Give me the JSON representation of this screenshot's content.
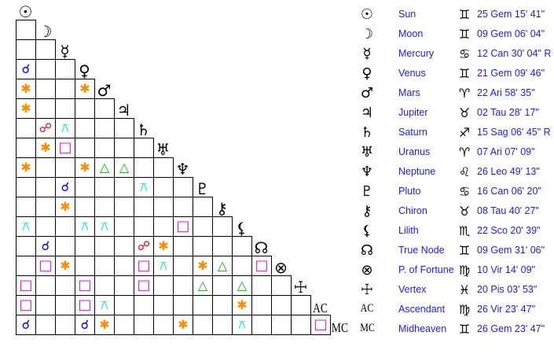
{
  "planets": [
    {
      "name": "Sun",
      "glyph": "☉",
      "sign": "♊",
      "position": "25 Gem 15' 41\""
    },
    {
      "name": "Moon",
      "glyph": "☽",
      "sign": "♊",
      "position": "09 Gem 06' 04\""
    },
    {
      "name": "Mercury",
      "glyph": "☿",
      "sign": "♋",
      "position": "12 Can 30' 04\" R"
    },
    {
      "name": "Venus",
      "glyph": "♀",
      "sign": "♊",
      "position": "21 Gem 09' 46\""
    },
    {
      "name": "Mars",
      "glyph": "♂",
      "sign": "♈",
      "position": "22 Ari 58' 35\""
    },
    {
      "name": "Jupiter",
      "glyph": "♃",
      "sign": "♉",
      "position": "02 Tau 28' 17\""
    },
    {
      "name": "Saturn",
      "glyph": "♄",
      "sign": "♐",
      "position": "15 Sag 06' 45\" R"
    },
    {
      "name": "Uranus",
      "glyph": "♅",
      "sign": "♈",
      "position": "07 Ari 07' 09\""
    },
    {
      "name": "Neptune",
      "glyph": "♆",
      "sign": "♌",
      "position": "26 Leo 49' 13\""
    },
    {
      "name": "Pluto",
      "glyph": "♇",
      "sign": "♋",
      "position": "16 Can 06' 20\""
    },
    {
      "name": "Chiron",
      "glyph": "⚷",
      "sign": "♉",
      "position": "08 Tau 40' 27\""
    },
    {
      "name": "Lilith",
      "glyph": "⚸",
      "sign": "♏",
      "position": "22 Sco 20' 39\""
    },
    {
      "name": "True Node",
      "glyph": "☊",
      "sign": "♊",
      "position": "09 Gem 31' 06\""
    },
    {
      "name": "P. of Fortune",
      "glyph": "⊗",
      "sign": "♍",
      "position": "10 Vir 14' 09\""
    },
    {
      "name": "Vertex",
      "glyph": "☩",
      "sign": "♓",
      "position": "20 Pis 03' 53\""
    },
    {
      "name": "Ascendant",
      "glyph": "AC",
      "sign": "♍",
      "position": "26 Vir 23' 47\""
    },
    {
      "name": "Midheaven",
      "glyph": "MC",
      "sign": "♊",
      "position": "26 Gem 23' 47\""
    }
  ],
  "aspect_types": {
    "conjunction": {
      "symbol": "☌",
      "color": "#0000ff"
    },
    "sextile": {
      "symbol": "✱",
      "color": "#ff8c00"
    },
    "opposition": {
      "symbol": "☍",
      "color": "#ff0000"
    },
    "square": {
      "symbol": "□",
      "color": "#ff00ff"
    },
    "trine": {
      "symbol": "△",
      "color": "#00c000"
    },
    "quincunx": {
      "symbol": "⚻",
      "color": "#00e0e0"
    }
  },
  "aspects": [
    {
      "a": "Venus",
      "b": "Sun",
      "type": "conjunction"
    },
    {
      "a": "Mars",
      "b": "Sun",
      "type": "sextile"
    },
    {
      "a": "Mars",
      "b": "Venus",
      "type": "sextile"
    },
    {
      "a": "Jupiter",
      "b": "Sun",
      "type": "sextile"
    },
    {
      "a": "Saturn",
      "b": "Moon",
      "type": "opposition"
    },
    {
      "a": "Saturn",
      "b": "Mercury",
      "type": "quincunx"
    },
    {
      "a": "Uranus",
      "b": "Moon",
      "type": "sextile"
    },
    {
      "a": "Uranus",
      "b": "Mercury",
      "type": "square"
    },
    {
      "a": "Neptune",
      "b": "Sun",
      "type": "sextile"
    },
    {
      "a": "Neptune",
      "b": "Venus",
      "type": "sextile"
    },
    {
      "a": "Neptune",
      "b": "Mars",
      "type": "trine"
    },
    {
      "a": "Neptune",
      "b": "Jupiter",
      "type": "trine"
    },
    {
      "a": "Pluto",
      "b": "Mercury",
      "type": "conjunction"
    },
    {
      "a": "Pluto",
      "b": "Saturn",
      "type": "quincunx"
    },
    {
      "a": "Chiron",
      "b": "Mercury",
      "type": "sextile"
    },
    {
      "a": "Lilith",
      "b": "Sun",
      "type": "quincunx"
    },
    {
      "a": "Lilith",
      "b": "Venus",
      "type": "quincunx"
    },
    {
      "a": "Lilith",
      "b": "Mars",
      "type": "quincunx"
    },
    {
      "a": "Lilith",
      "b": "Neptune",
      "type": "square"
    },
    {
      "a": "True Node",
      "b": "Moon",
      "type": "conjunction"
    },
    {
      "a": "True Node",
      "b": "Saturn",
      "type": "opposition"
    },
    {
      "a": "True Node",
      "b": "Uranus",
      "type": "sextile"
    },
    {
      "a": "P. of Fortune",
      "b": "Moon",
      "type": "square"
    },
    {
      "a": "P. of Fortune",
      "b": "Mercury",
      "type": "sextile"
    },
    {
      "a": "P. of Fortune",
      "b": "Saturn",
      "type": "square"
    },
    {
      "a": "P. of Fortune",
      "b": "Uranus",
      "type": "quincunx"
    },
    {
      "a": "P. of Fortune",
      "b": "Pluto",
      "type": "sextile"
    },
    {
      "a": "P. of Fortune",
      "b": "Chiron",
      "type": "trine"
    },
    {
      "a": "P. of Fortune",
      "b": "True Node",
      "type": "square"
    },
    {
      "a": "Vertex",
      "b": "Sun",
      "type": "square"
    },
    {
      "a": "Vertex",
      "b": "Venus",
      "type": "square"
    },
    {
      "a": "Vertex",
      "b": "Saturn",
      "type": "square"
    },
    {
      "a": "Vertex",
      "b": "Pluto",
      "type": "trine"
    },
    {
      "a": "Vertex",
      "b": "Lilith",
      "type": "trine"
    },
    {
      "a": "Ascendant",
      "b": "Sun",
      "type": "square"
    },
    {
      "a": "Ascendant",
      "b": "Venus",
      "type": "square"
    },
    {
      "a": "Ascendant",
      "b": "Mars",
      "type": "quincunx"
    },
    {
      "a": "Ascendant",
      "b": "Lilith",
      "type": "sextile"
    },
    {
      "a": "Midheaven",
      "b": "Sun",
      "type": "conjunction"
    },
    {
      "a": "Midheaven",
      "b": "Venus",
      "type": "conjunction"
    },
    {
      "a": "Midheaven",
      "b": "Mars",
      "type": "sextile"
    },
    {
      "a": "Midheaven",
      "b": "Neptune",
      "type": "sextile"
    },
    {
      "a": "Midheaven",
      "b": "Lilith",
      "type": "quincunx"
    },
    {
      "a": "Midheaven",
      "b": "Ascendant",
      "type": "square"
    }
  ]
}
